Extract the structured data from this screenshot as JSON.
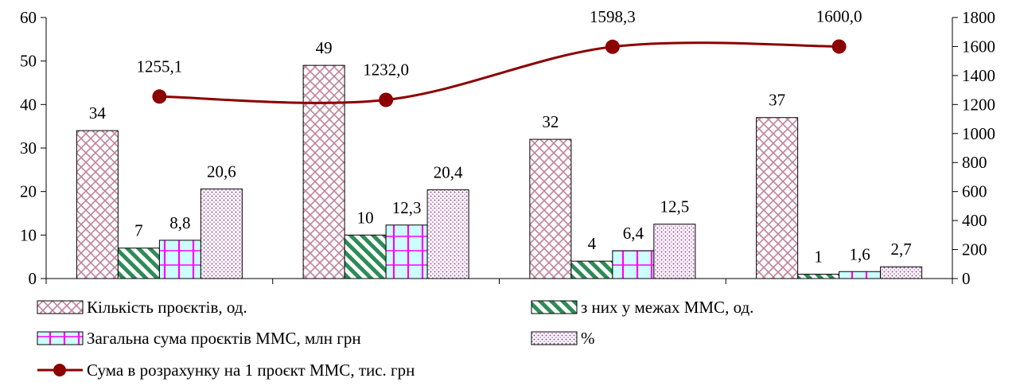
{
  "chart_data": {
    "type": "bar",
    "categories": [
      "",
      "",
      "",
      ""
    ],
    "series": [
      {
        "name": "Кількість проєктів, од.",
        "axis": "left",
        "values": [
          34,
          49,
          32,
          37
        ],
        "labels": [
          "34",
          "49",
          "32",
          "37"
        ],
        "fill": "crosshatch",
        "color": "#c0829a"
      },
      {
        "name": "з них у межах ММС, од.",
        "axis": "left",
        "values": [
          7,
          10,
          4,
          1
        ],
        "labels": [
          "7",
          "10",
          "4",
          "1"
        ],
        "fill": "diagonal-stripes",
        "color": "#2e8b57"
      },
      {
        "name": "Загальна сума проєктів ММС, млн грн",
        "axis": "left",
        "values": [
          8.8,
          12.3,
          6.4,
          1.6
        ],
        "labels": [
          "8,8",
          "12,3",
          "6,4",
          "1,6"
        ],
        "fill": "grid",
        "color": "#ff00ff"
      },
      {
        "name": "%",
        "axis": "left",
        "values": [
          20.6,
          20.4,
          12.5,
          2.7
        ],
        "labels": [
          "20,6",
          "20,4",
          "12,5",
          "2,7"
        ],
        "fill": "dots",
        "color": "#a0409a"
      }
    ],
    "line_series": {
      "name": "Сума в розрахунку на 1 проєкт ММС, тис. грн",
      "axis": "right",
      "values": [
        1255.1,
        1232.0,
        1598.3,
        1600.0
      ],
      "labels": [
        "1255,1",
        "1232,0",
        "1598,3",
        "1600,0"
      ],
      "color": "#8b0000"
    },
    "y_left": {
      "min": 0,
      "max": 60,
      "ticks": [
        "0",
        "10",
        "20",
        "30",
        "40",
        "50",
        "60"
      ]
    },
    "y_right": {
      "min": 0,
      "max": 1800,
      "ticks": [
        "0",
        "200",
        "400",
        "600",
        "800",
        "1000",
        "1200",
        "1400",
        "1600",
        "1800"
      ]
    },
    "legend_position": "bottom",
    "grid": false
  }
}
